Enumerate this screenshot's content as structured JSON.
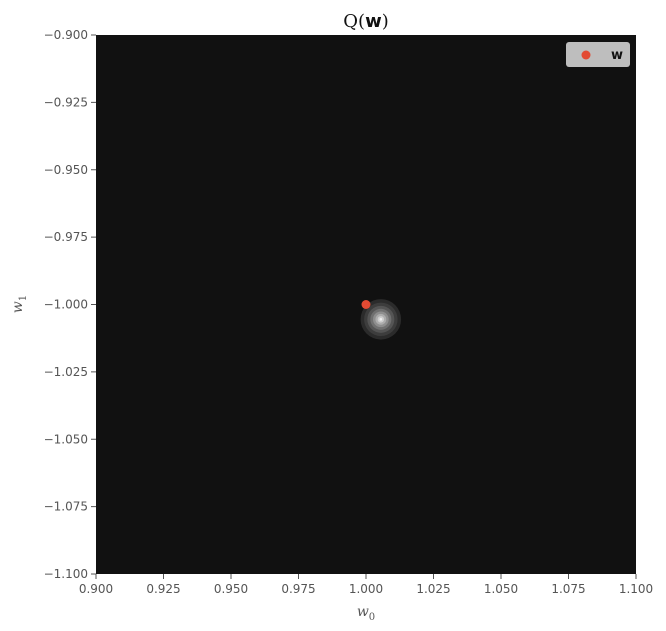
{
  "chart_data": {
    "type": "contour",
    "title": {
      "main": "Q",
      "arg": "w"
    },
    "xlabel": {
      "base": "w",
      "sub": "0"
    },
    "ylabel": {
      "base": "w",
      "sub": "1"
    },
    "xlim": [
      0.9,
      1.1
    ],
    "ylim": [
      -1.1,
      -0.9
    ],
    "x_ticks": [
      "0.900",
      "0.925",
      "0.950",
      "0.975",
      "1.000",
      "1.025",
      "1.050",
      "1.075",
      "1.100"
    ],
    "y_ticks": [
      "−0.900",
      "−0.925",
      "−0.950",
      "−0.975",
      "−1.000",
      "−1.025",
      "−1.050",
      "−1.075",
      "−1.100"
    ],
    "x_tick_values": [
      0.9,
      0.925,
      0.95,
      0.975,
      1.0,
      1.025,
      1.05,
      1.075,
      1.1
    ],
    "y_tick_values": [
      -0.9,
      -0.925,
      -0.95,
      -0.975,
      -1.0,
      -1.025,
      -1.05,
      -1.075,
      -1.1
    ],
    "background_color": "#111111",
    "contour": {
      "center": [
        1.0055,
        -1.0055
      ],
      "levels": [
        {
          "radius": 0.0075,
          "color": "#2b2b2b"
        },
        {
          "radius": 0.0062,
          "color": "#3d3d3d"
        },
        {
          "radius": 0.005,
          "color": "#555555"
        },
        {
          "radius": 0.0039,
          "color": "#707070"
        },
        {
          "radius": 0.0029,
          "color": "#8e8e8e"
        },
        {
          "radius": 0.002,
          "color": "#adadad"
        },
        {
          "radius": 0.0012,
          "color": "#cfcfcf"
        },
        {
          "radius": 0.0005,
          "color": "#f0f0f0"
        }
      ]
    },
    "points": [
      {
        "label": "w",
        "x": 1.0,
        "y": -1.0,
        "color": "#e24a33"
      }
    ],
    "legend": {
      "position": "upper-right",
      "entries": [
        {
          "label": "w",
          "color": "#e24a33"
        }
      ]
    }
  }
}
